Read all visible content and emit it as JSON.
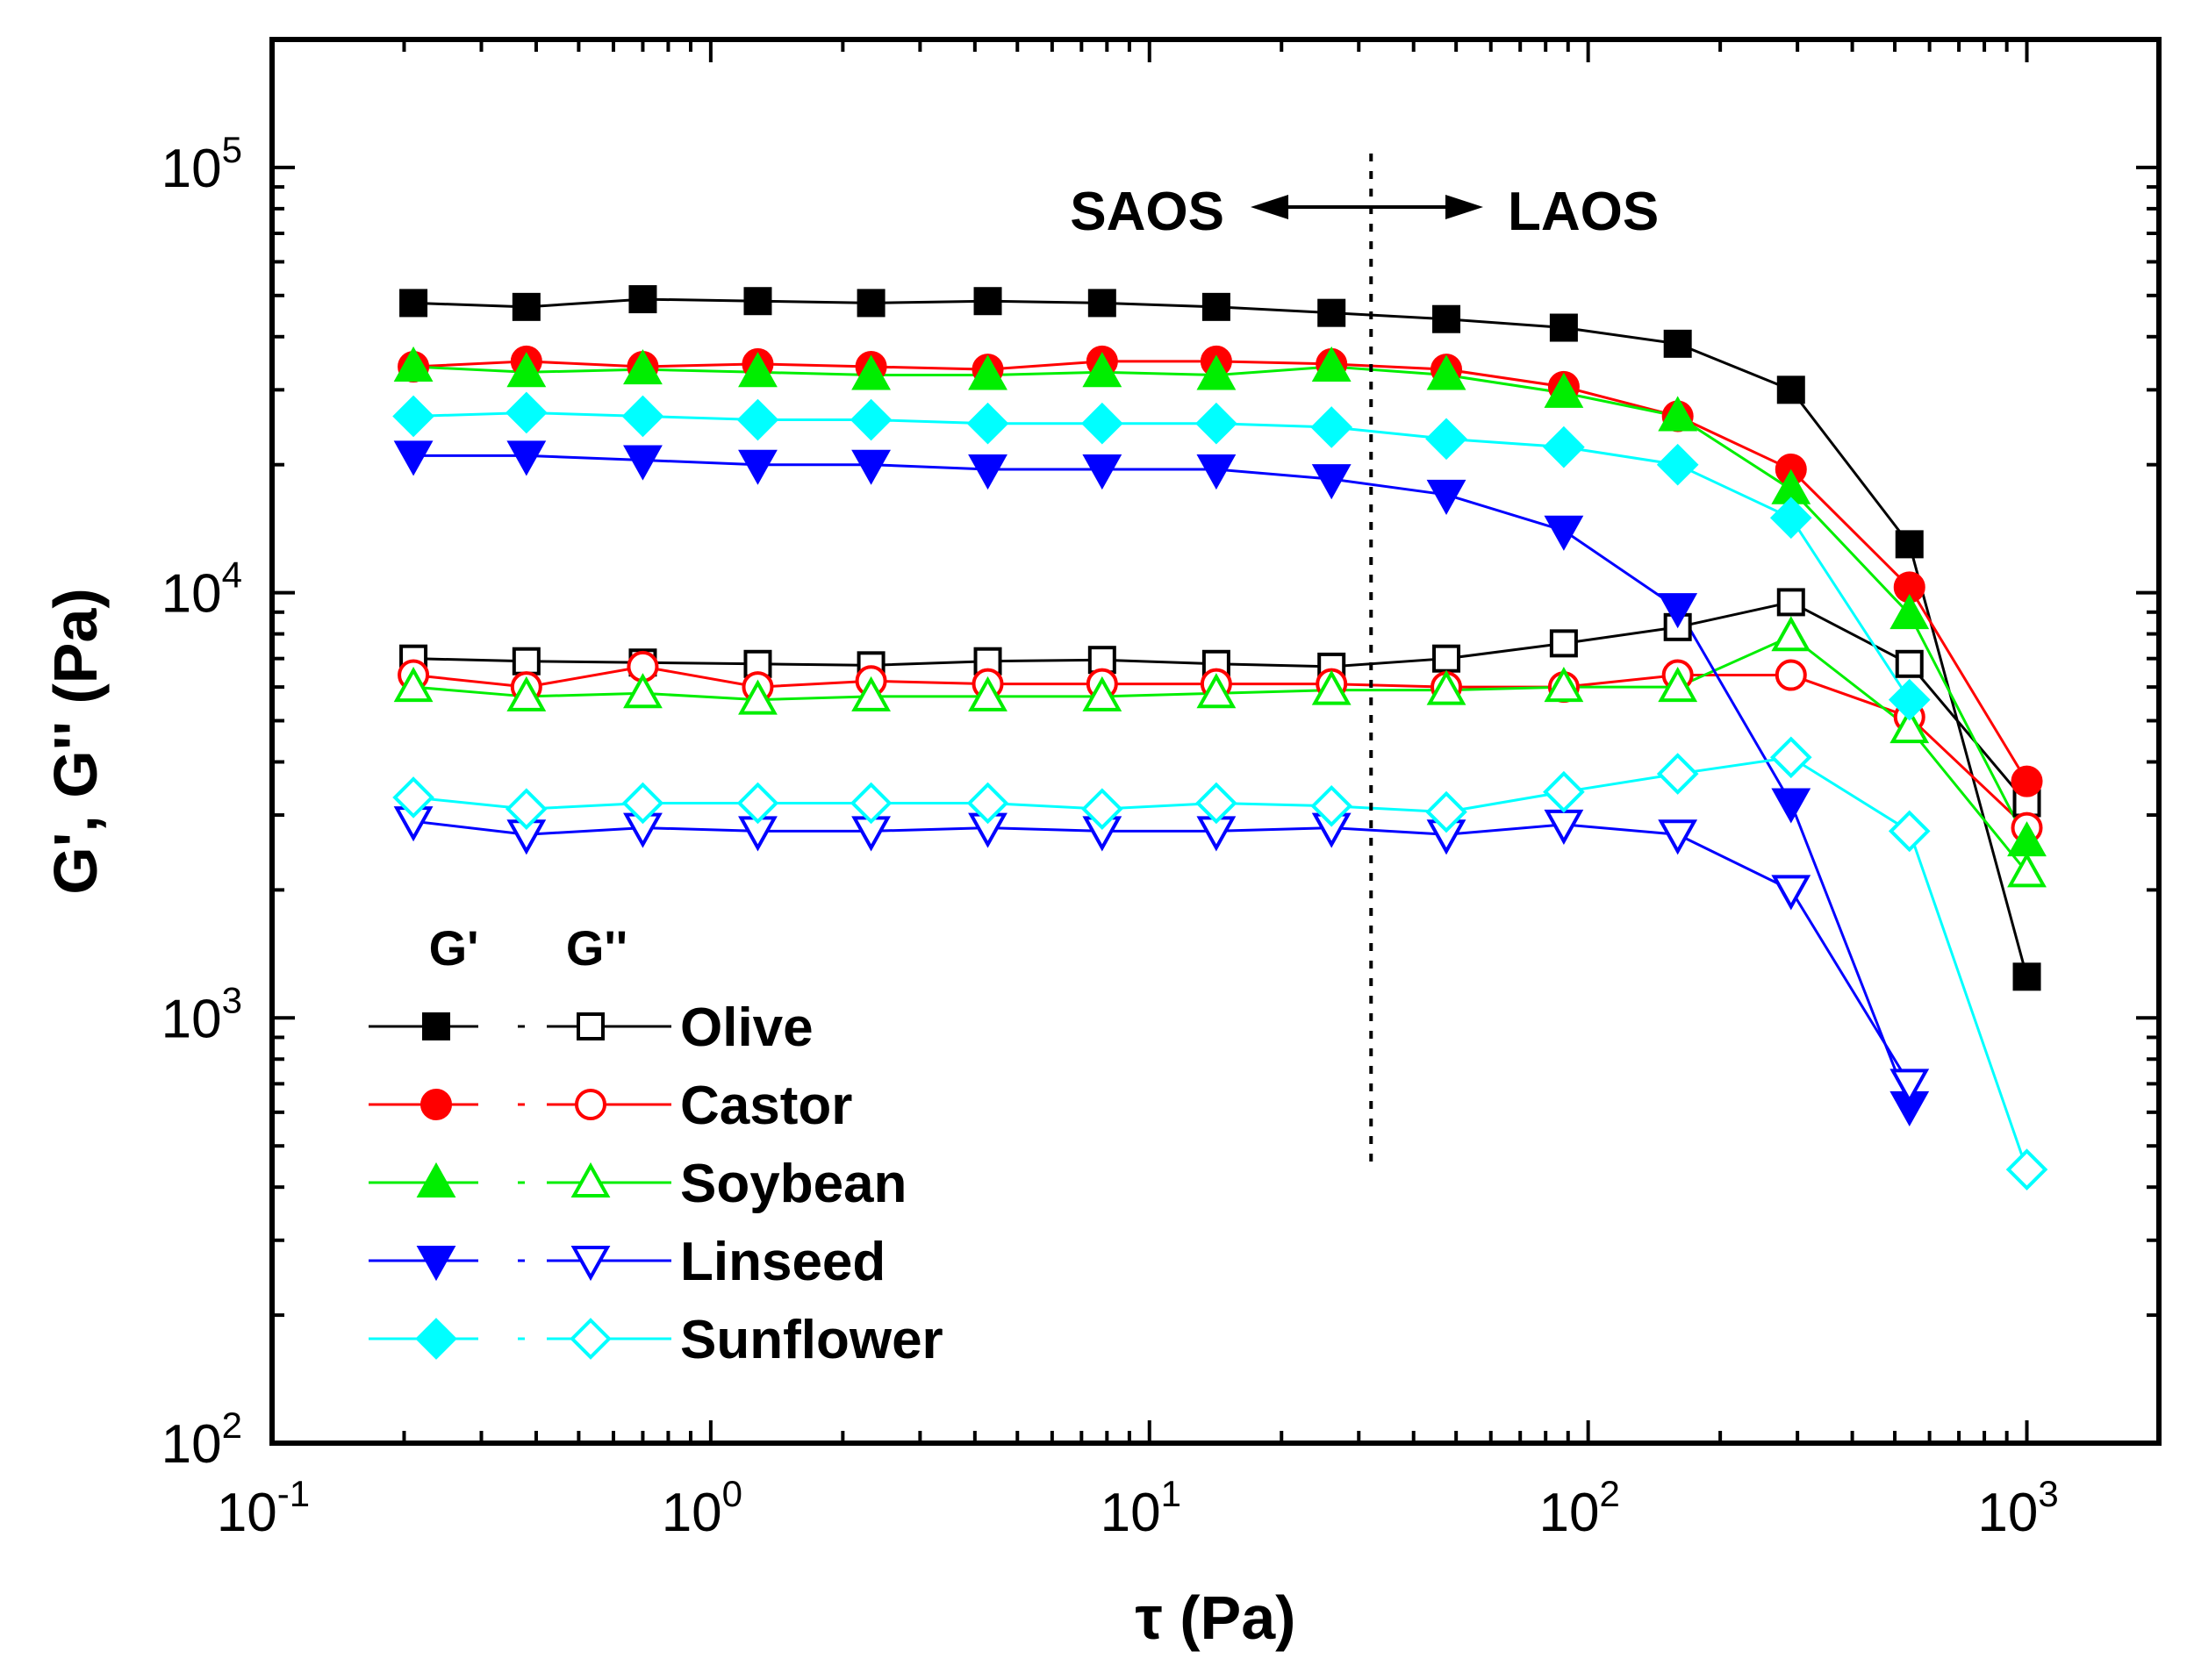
{
  "chart_data": {
    "type": "line",
    "xscale": "log",
    "yscale": "log",
    "xlim": [
      0.1,
      2000
    ],
    "ylim": [
      100,
      200000
    ],
    "xlabel": "τ (Pa)",
    "ylabel": "G', G'' (Pa)",
    "x_ticks": [
      {
        "base": "10",
        "exp": "-1"
      },
      {
        "base": "10",
        "exp": "0"
      },
      {
        "base": "10",
        "exp": "1"
      },
      {
        "base": "10",
        "exp": "2"
      },
      {
        "base": "10",
        "exp": "3"
      }
    ],
    "y_ticks": [
      {
        "base": "10",
        "exp": "2"
      },
      {
        "base": "10",
        "exp": "3"
      },
      {
        "base": "10",
        "exp": "4"
      },
      {
        "base": "10",
        "exp": "5"
      }
    ],
    "x": [
      0.21,
      0.38,
      0.7,
      1.28,
      2.32,
      4.28,
      7.8,
      14.2,
      26,
      47.5,
      88,
      160,
      290,
      540,
      1000
    ],
    "series": [
      {
        "name": "Olive",
        "color": "#000000",
        "marker": "square",
        "g1": [
          48000,
          47000,
          49000,
          48500,
          48000,
          48500,
          48000,
          47000,
          45500,
          44000,
          42000,
          38500,
          30000,
          13000,
          1250
        ],
        "g2": [
          7000,
          6900,
          6850,
          6800,
          6750,
          6900,
          6950,
          6800,
          6700,
          7000,
          7600,
          8300,
          9500,
          6800,
          3200
        ]
      },
      {
        "name": "Castor",
        "color": "#ff0000",
        "marker": "circle",
        "g1": [
          34000,
          35000,
          34000,
          34500,
          34000,
          33500,
          35000,
          35000,
          34500,
          33500,
          30500,
          26000,
          19500,
          10300,
          3600
        ],
        "g2": [
          6400,
          6000,
          6700,
          6000,
          6200,
          6100,
          6100,
          6100,
          6100,
          6000,
          6000,
          6400,
          6400,
          5100,
          2800
        ]
      },
      {
        "name": "Soybean",
        "color": "#00ee00",
        "marker": "triangle-up",
        "g1": [
          34000,
          33000,
          33500,
          33000,
          32500,
          32500,
          33000,
          32500,
          34000,
          32500,
          29500,
          26000,
          17500,
          8900,
          2600
        ],
        "g2": [
          6000,
          5700,
          5800,
          5600,
          5700,
          5700,
          5700,
          5800,
          5900,
          5900,
          6000,
          6000,
          7900,
          4800,
          2200
        ]
      },
      {
        "name": "Linseed",
        "color": "#0000ff",
        "marker": "triangle-down",
        "g1": [
          21000,
          21000,
          20500,
          20000,
          20000,
          19500,
          19500,
          19500,
          18500,
          17000,
          14000,
          9200,
          3200,
          620,
          null
        ],
        "g2": [
          2900,
          2700,
          2800,
          2750,
          2750,
          2800,
          2750,
          2750,
          2800,
          2700,
          2850,
          2700,
          2000,
          700,
          null
        ]
      },
      {
        "name": "Sunflower",
        "color": "#00ffff",
        "marker": "diamond",
        "g1": [
          26000,
          26500,
          26000,
          25500,
          25500,
          25000,
          25000,
          25000,
          24500,
          23000,
          22000,
          20000,
          15000,
          5600,
          null
        ],
        "g2": [
          3300,
          3100,
          3200,
          3200,
          3200,
          3200,
          3100,
          3200,
          3150,
          3050,
          3400,
          3750,
          4100,
          2750,
          440
        ]
      }
    ],
    "annotations": {
      "saos": "SAOS",
      "laos": "LAOS",
      "divider_x": 32
    },
    "legend": {
      "position": "bottom-left",
      "header_g1": "G'",
      "header_g2": "G''"
    }
  }
}
